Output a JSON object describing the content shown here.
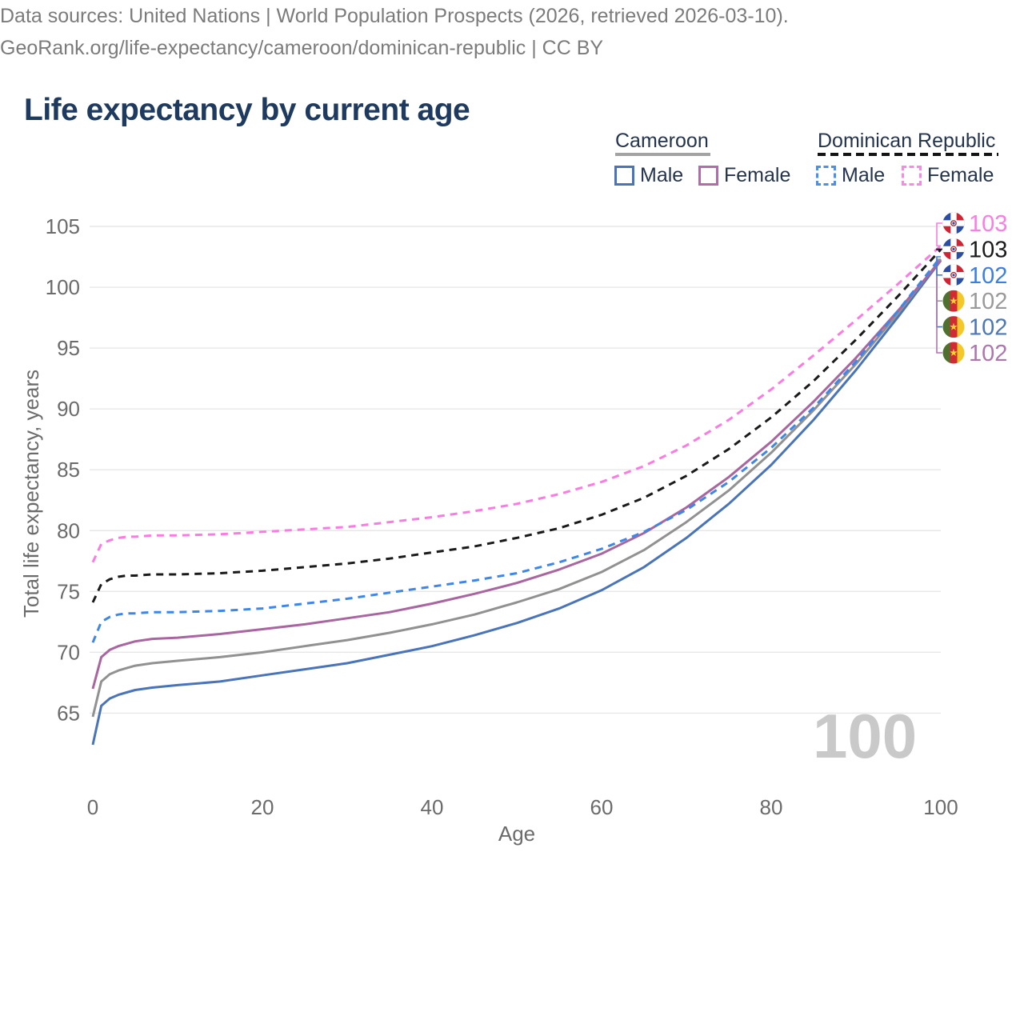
{
  "title": "Life expectancy by current age",
  "legend": {
    "groups": [
      {
        "name": "Cameroon",
        "line_style": "solid",
        "underline_color": "#a3a3a3",
        "items": [
          {
            "label": "Male",
            "color": "#4a74b9"
          },
          {
            "label": "Female",
            "color": "#b26cac"
          }
        ]
      },
      {
        "name": "Dominican Republic",
        "line_style": "dashed",
        "underline_color": "#141414",
        "items": [
          {
            "label": "Male",
            "color": "#4a90e8"
          },
          {
            "label": "Female",
            "color": "#fb87e5"
          }
        ]
      }
    ]
  },
  "chart_data": {
    "type": "line",
    "title": "Life expectancy by current age",
    "xlabel": "Age",
    "ylabel": "Total life expectancy, years",
    "xticks": [
      0,
      20,
      40,
      60,
      80,
      100
    ],
    "yticks": [
      65,
      70,
      75,
      80,
      85,
      90,
      95,
      100,
      105
    ],
    "xlim": [
      0,
      100
    ],
    "ylim": [
      62,
      106
    ],
    "grid": "horizontal",
    "legend_position": "top-right",
    "watermark": "100",
    "x": [
      0,
      1,
      2,
      3,
      4,
      5,
      7,
      10,
      15,
      20,
      25,
      30,
      35,
      40,
      45,
      50,
      55,
      60,
      65,
      70,
      75,
      80,
      85,
      90,
      95,
      100
    ],
    "series": [
      {
        "name": "Cameroon Male",
        "country": "Cameroon",
        "sex": "Male",
        "flag": "cm",
        "dash": false,
        "color": "#4a74b9",
        "label_color": "#4c77b5",
        "end_label": "102",
        "label_slot": 4,
        "values": [
          62.4,
          65.6,
          66.2,
          66.5,
          66.7,
          66.9,
          67.1,
          67.3,
          67.6,
          68.1,
          68.6,
          69.1,
          69.8,
          70.5,
          71.4,
          72.4,
          73.6,
          75.1,
          77.0,
          79.4,
          82.2,
          85.4,
          89.1,
          93.2,
          97.6,
          102.2
        ]
      },
      {
        "name": "Cameroon Both sexes",
        "country": "Cameroon",
        "sex": "Both",
        "flag": "cm",
        "dash": false,
        "color": "#919191",
        "label_color": "#9a9a9a",
        "end_label": "102",
        "label_slot": 3,
        "values": [
          64.7,
          67.6,
          68.2,
          68.5,
          68.7,
          68.9,
          69.1,
          69.3,
          69.6,
          70.0,
          70.5,
          71.0,
          71.6,
          72.3,
          73.1,
          74.1,
          75.2,
          76.6,
          78.4,
          80.7,
          83.3,
          86.4,
          89.9,
          93.7,
          97.9,
          102.3
        ]
      },
      {
        "name": "Cameroon Female",
        "country": "Cameroon",
        "sex": "Female",
        "flag": "cm",
        "dash": false,
        "color": "#a9659f",
        "label_color": "#ad77ad",
        "end_label": "102",
        "label_slot": 5,
        "values": [
          67.0,
          69.6,
          70.2,
          70.5,
          70.7,
          70.9,
          71.1,
          71.2,
          71.5,
          71.9,
          72.3,
          72.8,
          73.3,
          74.0,
          74.8,
          75.7,
          76.8,
          78.1,
          79.8,
          81.9,
          84.4,
          87.3,
          90.6,
          94.2,
          98.1,
          102.2
        ]
      },
      {
        "name": "Dominican Republic Male",
        "country": "Dominican Republic",
        "sex": "Male",
        "flag": "do",
        "dash": true,
        "color": "#3e86e8",
        "label_color": "#3d7fe0",
        "end_label": "102",
        "label_slot": 2,
        "values": [
          70.8,
          72.5,
          72.9,
          73.1,
          73.2,
          73.2,
          73.3,
          73.3,
          73.4,
          73.6,
          74.0,
          74.4,
          74.9,
          75.4,
          75.9,
          76.5,
          77.4,
          78.5,
          79.9,
          81.7,
          84.0,
          86.8,
          90.1,
          93.9,
          98.1,
          102.5
        ]
      },
      {
        "name": "Dominican Republic Both sexes",
        "country": "Dominican Republic",
        "sex": "Both",
        "flag": "do",
        "dash": true,
        "color": "#1a1a1a",
        "label_color": "#1a1a1a",
        "end_label": "103",
        "label_slot": 1,
        "values": [
          74.1,
          75.6,
          76.0,
          76.2,
          76.3,
          76.3,
          76.4,
          76.4,
          76.5,
          76.7,
          77.0,
          77.3,
          77.7,
          78.2,
          78.7,
          79.4,
          80.2,
          81.3,
          82.7,
          84.5,
          86.7,
          89.3,
          92.3,
          95.7,
          99.3,
          103.1
        ]
      },
      {
        "name": "Dominican Republic Female",
        "country": "Dominican Republic",
        "sex": "Female",
        "flag": "do",
        "dash": true,
        "color": "#fb7be2",
        "label_color": "#f97ee3",
        "end_label": "103",
        "label_slot": 0,
        "values": [
          77.4,
          78.9,
          79.2,
          79.4,
          79.5,
          79.5,
          79.6,
          79.6,
          79.7,
          79.9,
          80.1,
          80.3,
          80.7,
          81.1,
          81.6,
          82.2,
          83.0,
          84.0,
          85.3,
          87.0,
          89.1,
          91.6,
          94.4,
          97.3,
          100.3,
          103.4
        ]
      }
    ]
  },
  "icons": {
    "flag_cm": {
      "name": "cameroon-flag-icon",
      "green": "#4f7130",
      "red": "#d02a35",
      "yellow": "#f2c928",
      "star": "#f7d22e"
    },
    "flag_do": {
      "name": "dominican-republic-flag-icon",
      "blue": "#2b4ea3",
      "red": "#ce2534",
      "white": "#ffffff",
      "emblem_red": "#b23337",
      "emblem_blue": "#2a4da0"
    }
  },
  "colors": {
    "title": "#1e3a5f",
    "legend_text": "#24344d",
    "axis_text": "#6b6b6b",
    "gridline": "#e7e7e7",
    "watermark": "#c9c9c9",
    "footer_text": "#7b7b7b"
  },
  "footer": {
    "line1": "Data sources: United Nations | World Population Prospects (2026, retrieved 2026-03-10).",
    "line2": "GeoRank.org/life-expectancy/cameroon/dominican-republic | CC BY"
  }
}
